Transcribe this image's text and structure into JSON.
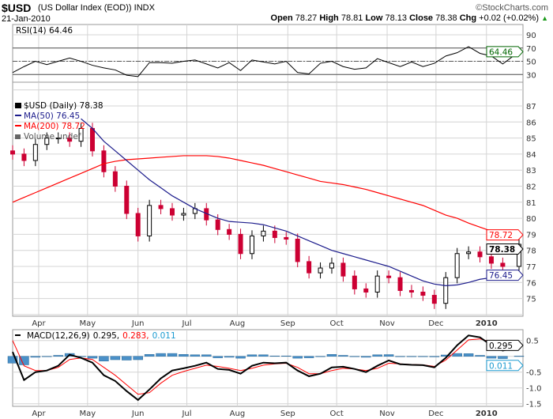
{
  "header": {
    "symbol": "$USD",
    "description": "(US Dollar Index (EOD))",
    "exchange": "INDX",
    "copyright": "©StockCharts.com",
    "date": "21-Jan-2010",
    "open_label": "Open",
    "open": "78.27",
    "high_label": "High",
    "high": "78.81",
    "low_label": "Low",
    "low": "78.13",
    "close_label": "Close",
    "close": "78.38",
    "chg_label": "Chg",
    "chg": "+0.02 (+0.02%)",
    "chg_icon": "up-triangle-icon"
  },
  "colors": {
    "up_candle": "#000000",
    "down_candle": "#cc0033",
    "ma50": "#1c1c8c",
    "ma200": "#ff0000",
    "rsi": "#000000",
    "macd": "#000000",
    "signal": "#ff0000",
    "histogram": "#4a90c8",
    "grid": "#d4d4d4",
    "rsi_tag": "#006600"
  },
  "chart_data": [
    {
      "type": "line",
      "panel": "rsi",
      "legend": "RSI(14) 64.46",
      "ylim": [
        20,
        100
      ],
      "yticks": [
        30,
        50,
        70,
        90
      ],
      "reference_lines": [
        30,
        50,
        70
      ],
      "last_value_tag": "64.46",
      "grid": true,
      "values": [
        33,
        42,
        50,
        45,
        50,
        55,
        50,
        44,
        40,
        37,
        29,
        27,
        48,
        48,
        47,
        50,
        52,
        46,
        40,
        48,
        36,
        52,
        49,
        46,
        50,
        33,
        31,
        47,
        50,
        42,
        38,
        40,
        54,
        48,
        42,
        49,
        42,
        47,
        58,
        63,
        72,
        62,
        58,
        46,
        64.46
      ]
    },
    {
      "type": "candlestick",
      "panel": "price",
      "legend": {
        "price": "$USD (Daily) 78.38",
        "ma50": "MA(50) 76.45",
        "ma200": "MA(200) 78.72",
        "volume": "Volume undef"
      },
      "ylim": [
        73.9,
        88.5
      ],
      "yticks": [
        75,
        76,
        77,
        78,
        79,
        80,
        81,
        82,
        83,
        84,
        85,
        86,
        87
      ],
      "grid": true,
      "tags": {
        "ma200": "78.72",
        "close": "78.38",
        "ma50": "76.45"
      },
      "close": [
        84.0,
        83.6,
        84.6,
        85.0,
        85.0,
        84.8,
        85.6,
        84.2,
        82.9,
        82.0,
        80.3,
        78.9,
        80.8,
        80.6,
        80.2,
        80.3,
        80.6,
        79.9,
        79.3,
        79.0,
        77.8,
        78.9,
        79.2,
        78.8,
        78.7,
        77.3,
        76.6,
        76.9,
        77.2,
        76.4,
        75.6,
        75.4,
        76.4,
        76.3,
        75.5,
        75.4,
        75.2,
        74.7,
        76.3,
        77.8,
        77.9,
        77.6,
        77.2,
        77.0,
        78.38
      ],
      "ma50": [
        null,
        null,
        null,
        null,
        null,
        null,
        86.2,
        85.6,
        84.8,
        84.2,
        83.6,
        83.0,
        82.4,
        81.9,
        81.4,
        81.0,
        80.6,
        80.3,
        80.0,
        79.8,
        79.75,
        79.7,
        79.6,
        79.4,
        79.2,
        78.9,
        78.6,
        78.3,
        78.0,
        77.8,
        77.6,
        77.4,
        77.2,
        77.0,
        76.7,
        76.4,
        76.1,
        75.9,
        75.8,
        75.85,
        76.0,
        76.2,
        76.3,
        76.4,
        76.45
      ],
      "ma200": [
        81.0,
        81.3,
        81.6,
        81.9,
        82.2,
        82.5,
        82.8,
        83.1,
        83.4,
        83.55,
        83.65,
        83.7,
        83.75,
        83.8,
        83.85,
        83.9,
        83.9,
        83.9,
        83.85,
        83.75,
        83.6,
        83.45,
        83.3,
        83.1,
        82.9,
        82.7,
        82.5,
        82.3,
        82.2,
        82.1,
        81.95,
        81.8,
        81.6,
        81.4,
        81.2,
        81.0,
        80.8,
        80.5,
        80.2,
        80.0,
        79.7,
        79.45,
        79.2,
        78.95,
        78.72
      ]
    },
    {
      "type": "line",
      "panel": "macd",
      "legend": {
        "name": "MACD(12,26,9)",
        "macd": "0.295,",
        "signal": "0.283,",
        "histogram": "0.011"
      },
      "ylim": [
        -1.6,
        0.65
      ],
      "yticks": [
        "0.5",
        "-0.5",
        "-1.0",
        "-1.5"
      ],
      "ytick_values": [
        0.5,
        -0.5,
        -1.0,
        -1.5
      ],
      "grid": true,
      "tags": {
        "macd": "0.295",
        "histogram": "0.011"
      },
      "macd": [
        0.14,
        -0.75,
        -0.5,
        -0.45,
        -0.3,
        0.05,
        -0.05,
        -0.2,
        -0.6,
        -0.78,
        -1.1,
        -1.38,
        -1.05,
        -0.7,
        -0.45,
        -0.38,
        -0.3,
        -0.2,
        -0.4,
        -0.43,
        -0.55,
        -0.3,
        -0.2,
        -0.22,
        -0.2,
        -0.45,
        -0.63,
        -0.55,
        -0.35,
        -0.33,
        -0.4,
        -0.5,
        -0.3,
        -0.13,
        -0.25,
        -0.27,
        -0.28,
        -0.35,
        -0.05,
        0.35,
        0.66,
        0.6,
        0.35,
        0.18,
        0.295
      ],
      "signal": [
        0.5,
        -0.3,
        -0.45,
        -0.45,
        -0.35,
        -0.1,
        -0.05,
        -0.1,
        -0.35,
        -0.6,
        -0.9,
        -1.2,
        -1.15,
        -0.85,
        -0.6,
        -0.48,
        -0.38,
        -0.28,
        -0.32,
        -0.38,
        -0.45,
        -0.38,
        -0.28,
        -0.24,
        -0.22,
        -0.35,
        -0.55,
        -0.55,
        -0.45,
        -0.38,
        -0.4,
        -0.45,
        -0.38,
        -0.22,
        -0.24,
        -0.26,
        -0.27,
        -0.32,
        -0.12,
        0.2,
        0.52,
        0.55,
        0.45,
        0.3,
        0.283
      ]
    }
  ],
  "dates": [
    "2009-03-16",
    "2009-03-23",
    "2009-03-30",
    "2009-04-06",
    "2009-04-13",
    "2009-04-20",
    "2009-04-27",
    "2009-05-04",
    "2009-05-11",
    "2009-05-18",
    "2009-05-25",
    "2009-06-01",
    "2009-06-08",
    "2009-06-15",
    "2009-06-22",
    "2009-06-29",
    "2009-07-06",
    "2009-07-13",
    "2009-07-20",
    "2009-07-27",
    "2009-08-03",
    "2009-08-10",
    "2009-08-17",
    "2009-08-24",
    "2009-08-31",
    "2009-09-07",
    "2009-09-14",
    "2009-09-21",
    "2009-09-28",
    "2009-10-05",
    "2009-10-12",
    "2009-10-19",
    "2009-10-26",
    "2009-11-02",
    "2009-11-09",
    "2009-11-16",
    "2009-11-23",
    "2009-11-30",
    "2009-12-07",
    "2009-12-14",
    "2009-12-21",
    "2009-12-28",
    "2010-01-04",
    "2010-01-11",
    "2010-01-21"
  ],
  "months": [
    {
      "label": "Apr",
      "date": "2009-04-01"
    },
    {
      "label": "May",
      "date": "2009-05-01"
    },
    {
      "label": "Jun",
      "date": "2009-06-01"
    },
    {
      "label": "Jul",
      "date": "2009-07-01"
    },
    {
      "label": "Aug",
      "date": "2009-08-01"
    },
    {
      "label": "Sep",
      "date": "2009-09-01"
    },
    {
      "label": "Oct",
      "date": "2009-10-01"
    },
    {
      "label": "Nov",
      "date": "2009-11-01"
    },
    {
      "label": "Dec",
      "date": "2009-12-01"
    },
    {
      "label": "2010",
      "date": "2010-01-01",
      "bold": true
    }
  ]
}
